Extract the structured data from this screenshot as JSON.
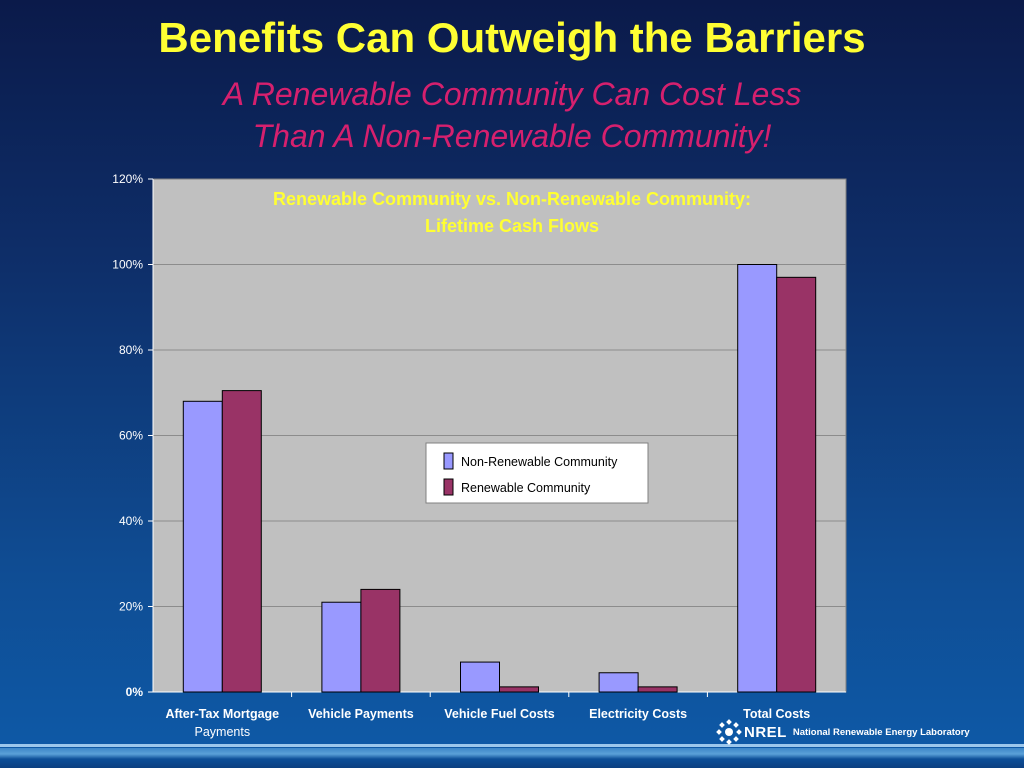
{
  "slide": {
    "title": "Benefits Can Outweigh the Barriers",
    "subtitle_line1": "A Renewable Community Can Cost Less",
    "subtitle_line2": "Than A Non-Renewable Community!"
  },
  "footer": {
    "logo_text": "NREL",
    "organization": "National Renewable Energy Laboratory"
  },
  "colors": {
    "title": "#ffff33",
    "subtitle": "#d6206e",
    "chart_title": "#ffff33",
    "plot_background": "#c0c0c0",
    "series_non_renewable": "#9999ff",
    "series_renewable": "#993366"
  },
  "chart_data": {
    "type": "bar",
    "title_lines": [
      "Renewable Community vs. Non-Renewable Community:",
      "Lifetime Cash Flows"
    ],
    "categories": [
      [
        "After-Tax Mortgage",
        "Payments"
      ],
      [
        "Vehicle Payments"
      ],
      [
        "Vehicle Fuel Costs"
      ],
      [
        "Electricity Costs"
      ],
      [
        "Total Costs"
      ]
    ],
    "series": [
      {
        "name": "Non-Renewable Community",
        "color": "#9999ff",
        "values": [
          68,
          21,
          7,
          4.5,
          100
        ]
      },
      {
        "name": "Renewable Community",
        "color": "#993366",
        "values": [
          70.5,
          24,
          1.2,
          1.2,
          97
        ]
      }
    ],
    "ylim": [
      0,
      120
    ],
    "yticks": [
      0,
      20,
      40,
      60,
      80,
      100,
      120
    ],
    "ytick_labels": [
      "0%",
      "20%",
      "40%",
      "60%",
      "80%",
      "100%",
      "120%"
    ],
    "grid": true,
    "legend": "center-right"
  }
}
